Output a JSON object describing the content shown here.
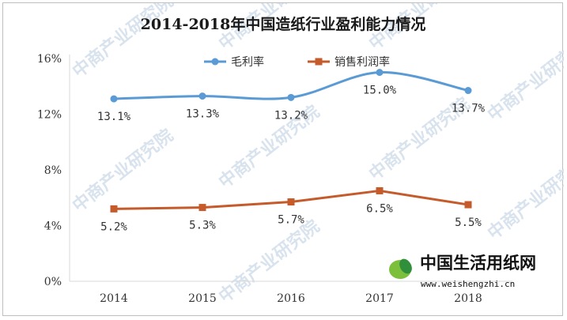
{
  "chart_data": {
    "type": "line",
    "title": "2014-2018年中国造纸行业盈利能力情况",
    "categories": [
      "2014",
      "2015",
      "2016",
      "2017",
      "2018"
    ],
    "ylim": [
      0,
      16
    ],
    "yticks": [
      "0%",
      "4%",
      "8%",
      "12%",
      "16%"
    ],
    "grid": false,
    "legend_position": "top-center",
    "series": [
      {
        "name": "毛利率",
        "color": "#5b9bd5",
        "values": [
          13.1,
          13.3,
          13.2,
          15.0,
          13.7
        ],
        "labels": [
          "13.1%",
          "13.3%",
          "13.2%",
          "15.0%",
          "13.7%"
        ]
      },
      {
        "name": "销售利润率",
        "color": "#c55a2b",
        "values": [
          5.2,
          5.3,
          5.7,
          6.5,
          5.5
        ],
        "labels": [
          "5.2%",
          "5.3%",
          "5.7%",
          "6.5%",
          "5.5%"
        ]
      }
    ]
  },
  "watermark": {
    "text": "中商产业研究院"
  },
  "logo": {
    "name": "中国生活用纸网",
    "url": "www.weishengzhi.cn"
  }
}
